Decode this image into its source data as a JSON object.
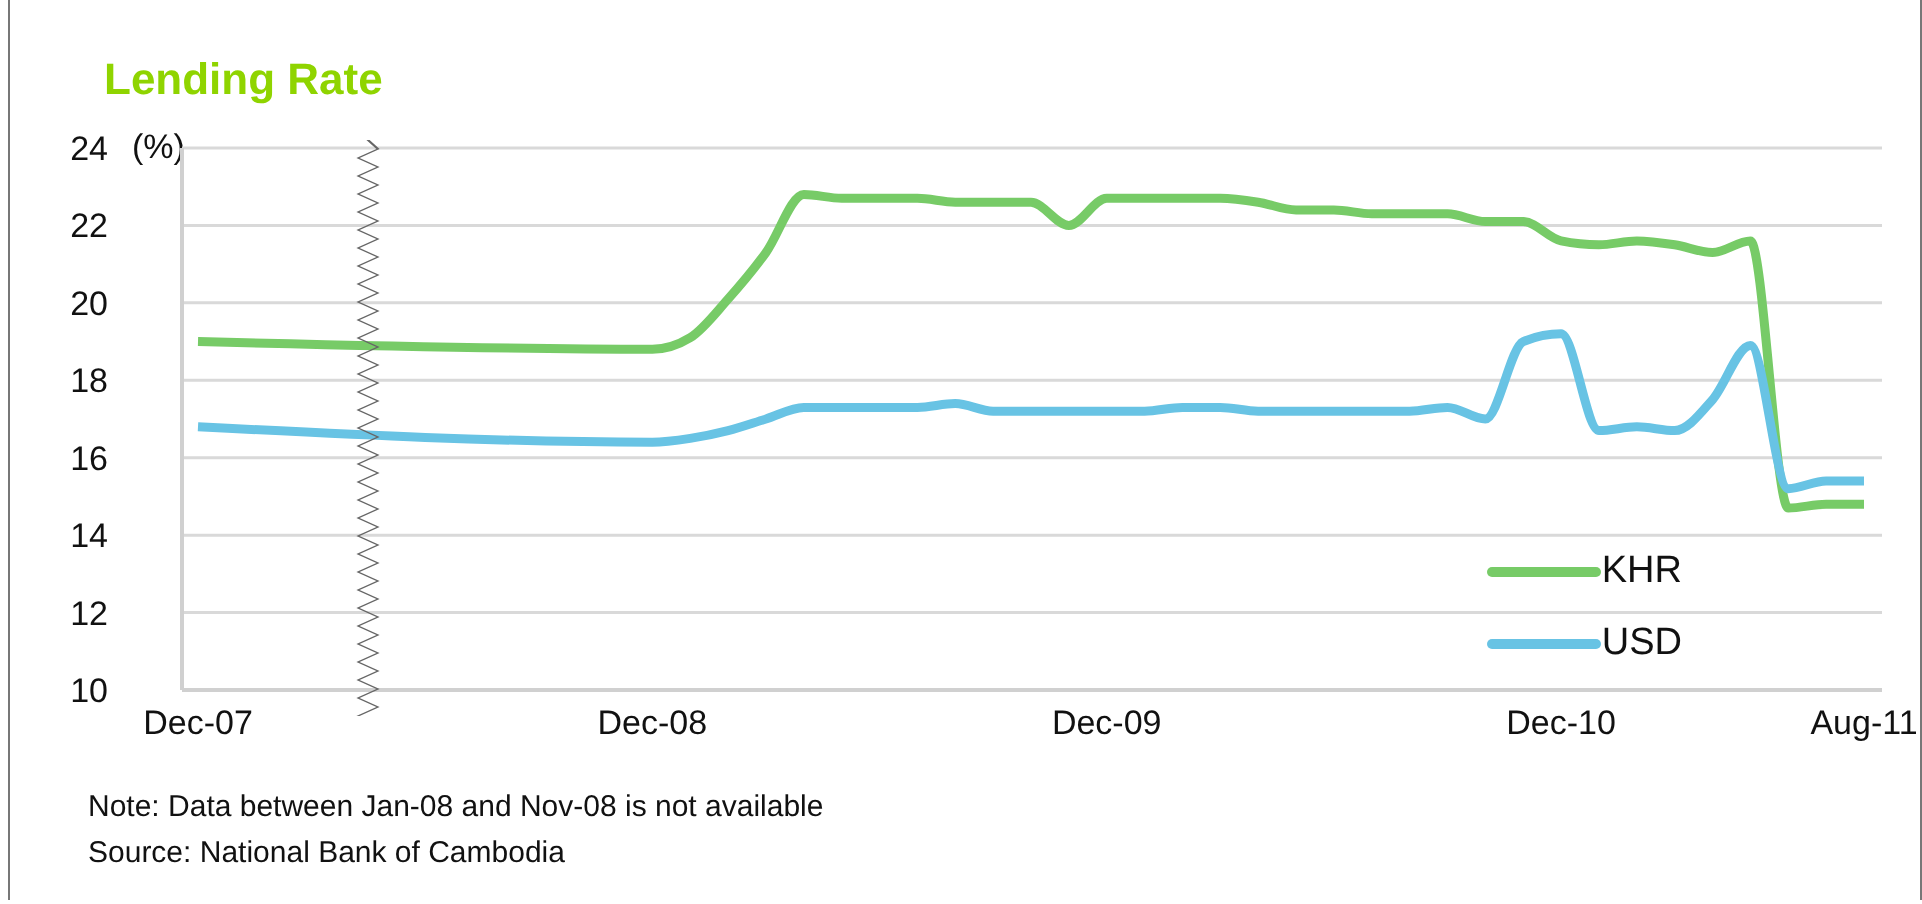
{
  "chart_data": {
    "type": "line",
    "title": "Lending Rate",
    "ylabel": "(%)",
    "categories": [
      "Dec-07",
      null,
      null,
      null,
      null,
      null,
      null,
      null,
      null,
      null,
      null,
      null,
      "Dec-08",
      null,
      null,
      null,
      null,
      null,
      null,
      null,
      null,
      null,
      null,
      null,
      "Dec-09",
      null,
      null,
      null,
      null,
      null,
      null,
      null,
      null,
      null,
      null,
      null,
      "Dec-10",
      null,
      null,
      null,
      null,
      null,
      null,
      null,
      "Aug-11"
    ],
    "series": [
      {
        "name": "KHR",
        "color": "#77cb67",
        "values": [
          19.0,
          null,
          null,
          null,
          null,
          null,
          null,
          null,
          null,
          null,
          null,
          null,
          18.8,
          19.1,
          20.1,
          21.3,
          22.8,
          22.7,
          22.7,
          22.7,
          22.6,
          22.6,
          22.6,
          22.0,
          22.7,
          22.7,
          22.7,
          22.7,
          22.6,
          22.4,
          22.4,
          22.3,
          22.3,
          22.3,
          22.1,
          22.1,
          21.6,
          21.5,
          21.6,
          21.5,
          21.3,
          21.6,
          14.7,
          14.8,
          14.8
        ]
      },
      {
        "name": "USD",
        "color": "#68c3e4",
        "values": [
          16.8,
          null,
          null,
          null,
          null,
          null,
          null,
          null,
          null,
          null,
          null,
          null,
          16.4,
          16.5,
          16.7,
          17.0,
          17.3,
          17.3,
          17.3,
          17.3,
          17.4,
          17.2,
          17.2,
          17.2,
          17.2,
          17.2,
          17.3,
          17.3,
          17.2,
          17.2,
          17.2,
          17.2,
          17.2,
          17.3,
          17.0,
          19.0,
          19.2,
          16.7,
          16.8,
          16.7,
          17.5,
          18.9,
          15.2,
          15.4,
          15.4
        ]
      }
    ],
    "ylim": [
      10,
      24
    ],
    "yticks": [
      10,
      12,
      14,
      16,
      18,
      20,
      22,
      24
    ],
    "grid": "y",
    "legend": "bottom right",
    "marker": "none",
    "line_style": "solid",
    "annotations": [
      "Note: Data between Jan-08 and Nov-08 is not available",
      "Source: National Bank of Cambodia"
    ]
  }
}
